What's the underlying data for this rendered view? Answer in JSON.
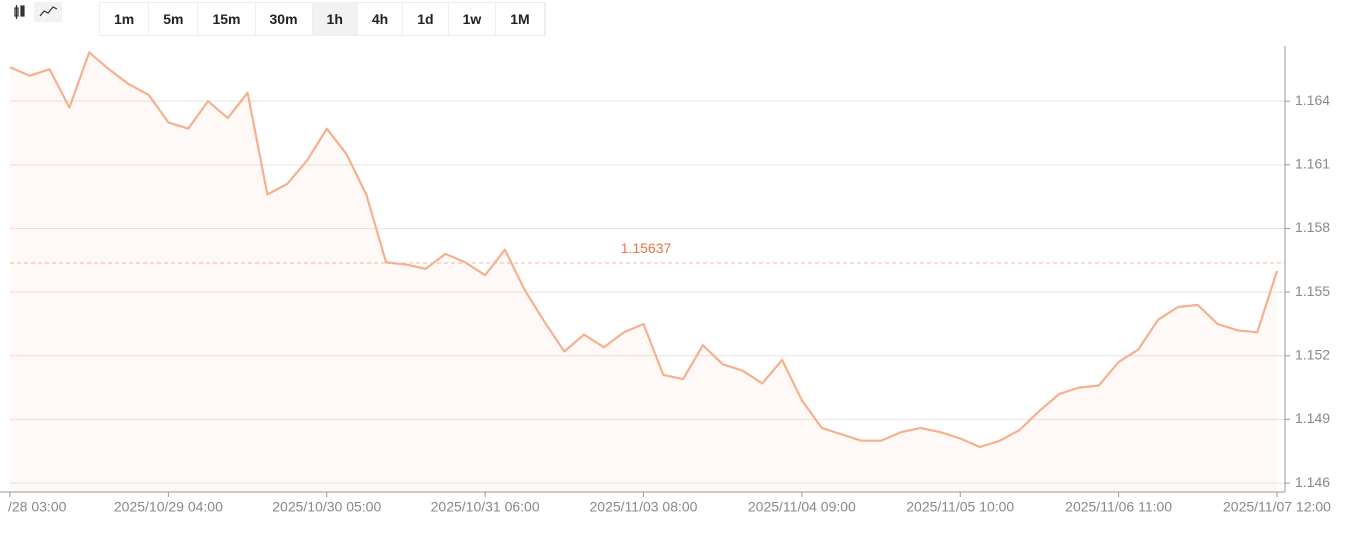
{
  "toolbar": {
    "intervals": [
      "1m",
      "5m",
      "15m",
      "30m",
      "1h",
      "4h",
      "1d",
      "1w",
      "1M"
    ],
    "active": "1h"
  },
  "chart_data": {
    "type": "line",
    "categories": [
      "/28 03:00",
      null,
      null,
      null,
      null,
      null,
      null,
      null,
      "2025/10/29 04:00",
      null,
      null,
      null,
      null,
      null,
      null,
      null,
      "2025/10/30 05:00",
      null,
      null,
      null,
      null,
      null,
      null,
      null,
      "2025/10/31 06:00",
      null,
      null,
      null,
      null,
      null,
      null,
      null,
      "2025/11/03 08:00",
      null,
      null,
      null,
      null,
      null,
      null,
      null,
      "2025/11/04 09:00",
      null,
      null,
      null,
      null,
      null,
      null,
      null,
      "2025/11/05 10:00",
      null,
      null,
      null,
      null,
      null,
      null,
      null,
      "2025/11/06 11:00",
      null,
      null,
      null,
      null,
      null,
      null,
      null,
      "2025/11/07 12:00"
    ],
    "values": [
      1.1656,
      1.1652,
      1.1655,
      1.1637,
      1.1663,
      1.1655,
      1.1648,
      1.1643,
      1.163,
      1.1627,
      1.164,
      1.1632,
      1.1644,
      1.1596,
      1.1601,
      1.1612,
      1.1627,
      1.1615,
      1.1596,
      1.1564,
      1.1563,
      1.1561,
      1.1568,
      1.1564,
      1.1558,
      1.157,
      1.1551,
      1.1536,
      1.1522,
      1.153,
      1.1524,
      1.1531,
      1.1535,
      1.1511,
      1.1509,
      1.1525,
      1.1516,
      1.1513,
      1.1507,
      1.1518,
      1.1499,
      1.1486,
      1.1483,
      1.148,
      1.148,
      1.1484,
      1.1486,
      1.1484,
      1.1481,
      1.1477,
      1.148,
      1.1485,
      1.1494,
      1.1502,
      1.1505,
      1.1506,
      1.1517,
      1.1523,
      1.1537,
      1.1543,
      1.1544,
      1.1535,
      1.1532,
      1.1531,
      1.156
    ],
    "color": "#f5b08f",
    "ylim": [
      1.14558,
      1.1666
    ],
    "yticks": [
      1.146,
      1.149,
      1.152,
      1.155,
      1.158,
      1.161,
      1.164
    ],
    "grid": true,
    "reference_value": 1.15637
  }
}
